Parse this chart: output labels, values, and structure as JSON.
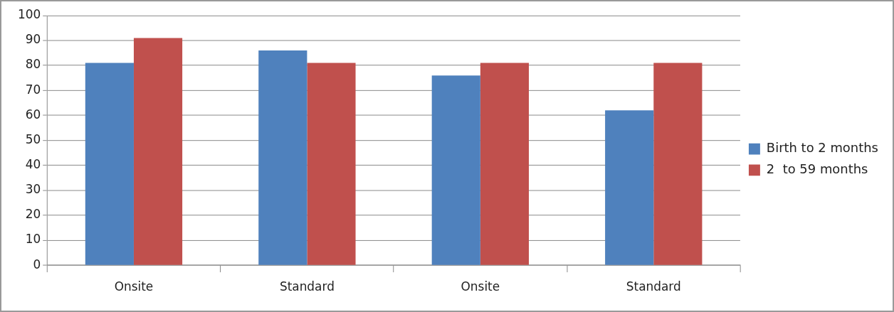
{
  "chart_data": {
    "type": "bar",
    "categories": [
      "Onsite",
      "Standard",
      "Onsite",
      "Standard"
    ],
    "series": [
      {
        "name": "Birth to 2 months",
        "color": "#4f81bd",
        "values": [
          81,
          86,
          76,
          62
        ]
      },
      {
        "name": "2  to 59 months",
        "color": "#c0504d",
        "values": [
          91,
          81,
          81,
          81
        ]
      }
    ],
    "ylim": [
      0,
      100
    ],
    "yticks": [
      0,
      10,
      20,
      30,
      40,
      50,
      60,
      70,
      80,
      90,
      100
    ],
    "grid": "y",
    "legend": "right"
  }
}
